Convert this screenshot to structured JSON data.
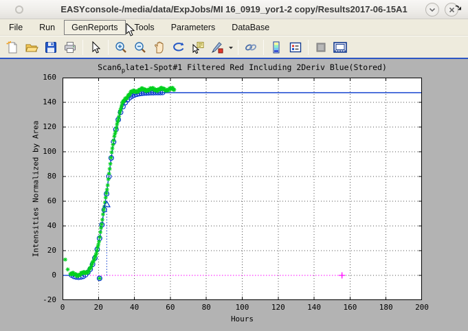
{
  "window": {
    "title": "EASYconsole-/media/data/ExpJobs/MI 16_0919_yor1-2 copy/Results2017-06-15A1",
    "titlebar_icons": [
      "window-menu-icon",
      "chevron-down-icon",
      "close-icon"
    ]
  },
  "menubar": {
    "items": [
      {
        "label": "File",
        "active": false
      },
      {
        "label": "Run",
        "active": false
      },
      {
        "label": "GenReports",
        "active": true
      },
      {
        "label": "Tools",
        "active": false
      },
      {
        "label": "Parameters",
        "active": false
      },
      {
        "label": "DataBase",
        "active": false
      }
    ],
    "overflow_icon": "undock-arrow-icon"
  },
  "toolbar": {
    "groups": [
      [
        "new-figure",
        "open-file",
        "save-figure",
        "print-figure"
      ],
      [
        "pointer-tool"
      ],
      [
        "zoom-in",
        "zoom-out",
        "pan-tool",
        "rotate-3d",
        "data-cursor",
        "brush-tool",
        "brush-dropdown"
      ],
      [
        "link-plots"
      ],
      [
        "insert-colorbar",
        "insert-legend"
      ],
      [
        "hide-plot-tools",
        "show-plot-tools"
      ]
    ]
  },
  "chart_data": {
    "type": "line",
    "title": "Scan6_plate1-Spot#1 Filtered Red Including 2Deriv Blue(Stored)",
    "title_parts": {
      "pre": "Scan6",
      "sub": "p",
      "post": "late1-Spot#1 Filtered Red Including 2Deriv Blue(Stored)"
    },
    "xlabel": "Hours",
    "ylabel": "Intensities Normalized by Area",
    "xlim": [
      0,
      200
    ],
    "ylim": [
      -20,
      160
    ],
    "xticks": [
      0,
      20,
      40,
      60,
      80,
      100,
      120,
      140,
      160,
      180,
      200
    ],
    "yticks": [
      -20,
      0,
      20,
      40,
      60,
      80,
      100,
      120,
      140,
      160
    ],
    "grid": "dotted",
    "colors": {
      "fit_line": "#0033cc",
      "raw_marker": "#00d01e",
      "baseline": "#ff00ff",
      "grid": "#4d4d4d"
    },
    "series": [
      {
        "name": "fit-curve",
        "type": "line",
        "marker": "none",
        "color": "#0033cc",
        "points": [
          [
            0,
            0
          ],
          [
            4,
            0
          ],
          [
            6,
            -0.1
          ],
          [
            8,
            -0.3
          ],
          [
            10,
            0
          ],
          [
            12,
            0.8
          ],
          [
            14,
            2.5
          ],
          [
            16,
            6
          ],
          [
            18,
            13
          ],
          [
            20,
            25
          ],
          [
            21,
            33
          ],
          [
            22,
            42
          ],
          [
            23,
            52
          ],
          [
            24,
            62
          ],
          [
            25,
            72
          ],
          [
            26,
            83
          ],
          [
            27,
            94
          ],
          [
            28,
            104
          ],
          [
            29,
            112
          ],
          [
            30,
            119
          ],
          [
            31,
            125
          ],
          [
            32,
            130
          ],
          [
            33,
            134.5
          ],
          [
            34,
            138
          ],
          [
            35,
            140.5
          ],
          [
            36,
            142.3
          ],
          [
            37,
            143.7
          ],
          [
            38,
            144.8
          ],
          [
            39,
            145.6
          ],
          [
            40,
            146.2
          ],
          [
            42,
            147
          ],
          [
            44,
            147.4
          ],
          [
            47,
            147.6
          ],
          [
            50,
            147.8
          ],
          [
            60,
            147.8
          ],
          [
            200,
            147.8
          ]
        ]
      },
      {
        "name": "smoothed-points",
        "type": "scatter",
        "marker": "circle",
        "color": "#0033cc",
        "points": [
          [
            5,
            0.3
          ],
          [
            6.3,
            -0.8
          ],
          [
            7.6,
            -1.3
          ],
          [
            8.9,
            -1.5
          ],
          [
            10.2,
            -1.3
          ],
          [
            11.5,
            -0.8
          ],
          [
            12.8,
            0.5
          ],
          [
            14.1,
            2.5
          ],
          [
            15.4,
            5
          ],
          [
            16.7,
            9
          ],
          [
            18,
            14
          ],
          [
            19.3,
            21
          ],
          [
            20.6,
            30
          ],
          [
            21.9,
            41
          ],
          [
            23.2,
            53
          ],
          [
            24.5,
            66
          ],
          [
            25.8,
            80
          ],
          [
            27.1,
            95
          ],
          [
            28.4,
            108
          ],
          [
            29.7,
            118
          ],
          [
            31,
            126
          ],
          [
            32.3,
            132
          ],
          [
            33.6,
            136.5
          ],
          [
            34.9,
            139.8
          ],
          [
            36.2,
            142.2
          ],
          [
            37.5,
            143.9
          ],
          [
            38.8,
            145.1
          ],
          [
            40.1,
            146
          ],
          [
            41.4,
            146.6
          ],
          [
            42.7,
            147
          ],
          [
            44,
            147.3
          ],
          [
            45.3,
            147.5
          ],
          [
            46.6,
            147.6
          ],
          [
            47.9,
            147.7
          ],
          [
            49.2,
            147.8
          ],
          [
            50.5,
            147.8
          ],
          [
            51.8,
            147.9
          ],
          [
            53.1,
            147.9
          ],
          [
            54.4,
            147.9
          ],
          [
            55.7,
            148
          ]
        ]
      },
      {
        "name": "filtered-raw-cloud",
        "type": "scatter-generated",
        "marker": "asterisk",
        "color": "#00d01e",
        "t_start": 4.4,
        "t_end": 62.4,
        "t_step": 0.37,
        "lift_low": 0.9,
        "lift_high": 2.7,
        "lift_ramp": [
          28,
          33
        ],
        "noise_amp": 1.0
      },
      {
        "name": "outlier-asterisks",
        "type": "scatter",
        "marker": "asterisk",
        "color": "#00d01e",
        "points": [
          [
            1.5,
            12.8
          ],
          [
            2.9,
            4.8
          ],
          [
            20.6,
            -2.4
          ]
        ]
      },
      {
        "name": "outlier-circle",
        "type": "scatter",
        "marker": "circle",
        "color": "#0033cc",
        "points": [
          [
            20.6,
            -2.4
          ]
        ]
      },
      {
        "name": "deriv-marker",
        "type": "scatter",
        "marker": "triangle",
        "color": "#0033cc",
        "points": [
          [
            24.6,
            57.5
          ]
        ]
      }
    ],
    "annotations": {
      "vline": {
        "x": 24.6,
        "y0": 0,
        "y1": 57.5,
        "color": "#0033cc",
        "style": "dotted"
      },
      "baseline": {
        "y": 0,
        "x0": 0,
        "x1": 154.5,
        "color": "#ff00ff",
        "style": "dotted",
        "end_marker": "plus",
        "end_x": 155.5
      }
    }
  }
}
